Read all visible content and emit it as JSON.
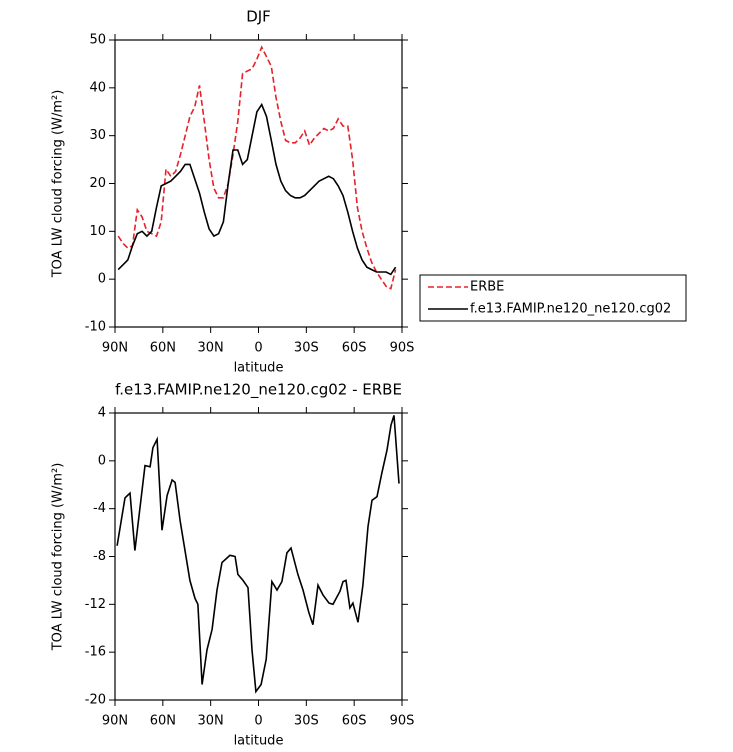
{
  "chart_data": [
    {
      "type": "line",
      "title": "DJF",
      "xlabel": "latitude",
      "ylabel": "TOA LW cloud forcing (W/m²)",
      "xlim": [
        90,
        -90
      ],
      "xticks": [
        {
          "value": 90,
          "label": "90N"
        },
        {
          "value": 60,
          "label": "60N"
        },
        {
          "value": 30,
          "label": "30N"
        },
        0,
        {
          "value": -30,
          "label": "30S"
        },
        {
          "value": -60,
          "label": "60S"
        },
        {
          "value": -90,
          "label": "90S"
        }
      ],
      "ylim": [
        -10,
        50
      ],
      "yticks": [
        -10,
        0,
        10,
        20,
        30,
        40,
        50
      ],
      "legend": "right",
      "x": [
        88,
        85,
        82,
        79,
        76,
        73,
        70,
        67,
        64,
        61,
        58,
        55,
        52,
        49,
        46,
        43,
        40,
        37,
        34,
        31,
        28,
        25,
        22,
        19,
        16,
        13,
        10,
        7,
        4,
        1,
        -2,
        -5,
        -8,
        -11,
        -14,
        -17,
        -20,
        -23,
        -26,
        -29,
        -32,
        -35,
        -38,
        -41,
        -44,
        -47,
        -50,
        -53,
        -56,
        -59,
        -62,
        -65,
        -68,
        -71,
        -74,
        -77,
        -80,
        -83,
        -86
      ],
      "series": [
        {
          "name": "ERBE",
          "color": "#e8202a",
          "linestyle": "dashed",
          "values": [
            9,
            7.5,
            6.5,
            7,
            14.5,
            13,
            10,
            9.5,
            9,
            12,
            23,
            21.5,
            22.5,
            26,
            30,
            34,
            36,
            40.5,
            33,
            25,
            19,
            17,
            17,
            20,
            26,
            33,
            43,
            43.5,
            44,
            46,
            48.5,
            46.5,
            44.5,
            38,
            33,
            29,
            28.5,
            28.5,
            29.5,
            31,
            28,
            29.5,
            30.5,
            31.5,
            31,
            31.5,
            33.5,
            32,
            32,
            25,
            15,
            10,
            6.5,
            3.5,
            1.5,
            0,
            -1.5,
            -2,
            2
          ]
        },
        {
          "name": "f.e13.FAMIP.ne120_ne120.cg02",
          "color": "#000000",
          "linestyle": "solid",
          "values": [
            2,
            3,
            4,
            7,
            9.5,
            10,
            9,
            10,
            15,
            19.5,
            20,
            20.5,
            21.5,
            22.5,
            24,
            24,
            21,
            18,
            14,
            10.5,
            9,
            9.5,
            12,
            20,
            27,
            27,
            24,
            25,
            30,
            35,
            36.5,
            34,
            29,
            24,
            20.5,
            18.5,
            17.5,
            17,
            17,
            17.5,
            18.5,
            19.5,
            20.5,
            21,
            21.5,
            21,
            19.5,
            17.5,
            14,
            10,
            6.5,
            4,
            2.5,
            2,
            1.5,
            1.5,
            1.5,
            1,
            2.5
          ]
        }
      ]
    },
    {
      "type": "line",
      "title": "f.e13.FAMIP.ne120_ne120.cg02 - ERBE",
      "xlabel": "latitude",
      "ylabel": "TOA LW cloud forcing (W/m²)",
      "xlim": [
        90,
        -90
      ],
      "xticks": [
        {
          "value": 90,
          "label": "90N"
        },
        {
          "value": 60,
          "label": "60N"
        },
        {
          "value": 30,
          "label": "30N"
        },
        0,
        {
          "value": -30,
          "label": "30S"
        },
        {
          "value": -60,
          "label": "60S"
        },
        {
          "value": -90,
          "label": "90S"
        }
      ],
      "ylim": [
        -20,
        4
      ],
      "yticks": [
        -20,
        -16,
        -12,
        -8,
        -4,
        0,
        4
      ],
      "color": "#000000",
      "x": [
        88.7,
        83.7,
        80.6,
        77.5,
        71.2,
        68.0,
        66.2,
        63.6,
        60.5,
        57.3,
        54.2,
        52.3,
        49.2,
        43.0,
        39.8,
        38.0,
        35.4,
        32.3,
        29.1,
        26.0,
        22.9,
        17.9,
        14.7,
        12.9,
        9.7,
        6.6,
        4.1,
        1.6,
        -1.6,
        -4.8,
        -8.4,
        -11.6,
        -14.7,
        -17.8,
        -20.4,
        -24.7,
        -27.9,
        -31.6,
        -34.1,
        -37.3,
        -40.4,
        -44.2,
        -46.7,
        -51.1,
        -53.0,
        -54.9,
        -57.3,
        -59.2,
        -62.4,
        -65.5,
        -68.7,
        -71.2,
        -74.3,
        -77.4,
        -80.6,
        -83.1,
        -85.0,
        -88.1
      ],
      "values": [
        -7.1,
        -3.1,
        -2.7,
        -7.5,
        -0.4,
        -0.5,
        1.1,
        1.8,
        -5.8,
        -2.9,
        -1.6,
        -1.8,
        -5,
        -10,
        -11.5,
        -12,
        -18.7,
        -15.8,
        -14.1,
        -10.8,
        -8.5,
        -7.9,
        -8,
        -9.5,
        -10,
        -10.6,
        -15.8,
        -19.3,
        -18.7,
        -16.6,
        -10.1,
        -10.8,
        -10.1,
        -7.7,
        -7.3,
        -9.5,
        -10.8,
        -12.7,
        -13.7,
        -10.4,
        -11.2,
        -11.9,
        -12,
        -10.9,
        -10.1,
        -10,
        -12.3,
        -11.9,
        -13.5,
        -10.4,
        -5.5,
        -3.3,
        -3,
        -1,
        0.9,
        3,
        3.8,
        -1.9
      ]
    }
  ]
}
